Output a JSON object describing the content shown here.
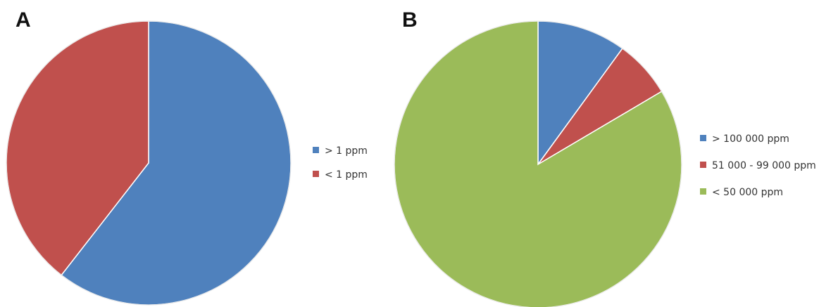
{
  "colors": {
    "blue": "#4F81BD",
    "red": "#C0504D",
    "green": "#9BBB59"
  },
  "chart_data": [
    {
      "type": "pie",
      "panel_label": "A",
      "start_angle_deg": 0,
      "direction": "clockwise",
      "legend_position": "right",
      "slices": [
        {
          "label": "> 1 ppm",
          "value": 60.5,
          "color": "#4F81BD"
        },
        {
          "label": "< 1 ppm",
          "value": 39.5,
          "color": "#C0504D"
        }
      ]
    },
    {
      "type": "pie",
      "panel_label": "B",
      "start_angle_deg": 0,
      "direction": "clockwise",
      "legend_position": "right",
      "slices": [
        {
          "label": "> 100 000 ppm",
          "value": 10,
          "color": "#4F81BD"
        },
        {
          "label": "51 000 - 99 000 ppm",
          "value": 6.5,
          "color": "#C0504D"
        },
        {
          "label": "< 50 000 ppm",
          "value": 83.5,
          "color": "#9BBB59"
        }
      ]
    }
  ]
}
